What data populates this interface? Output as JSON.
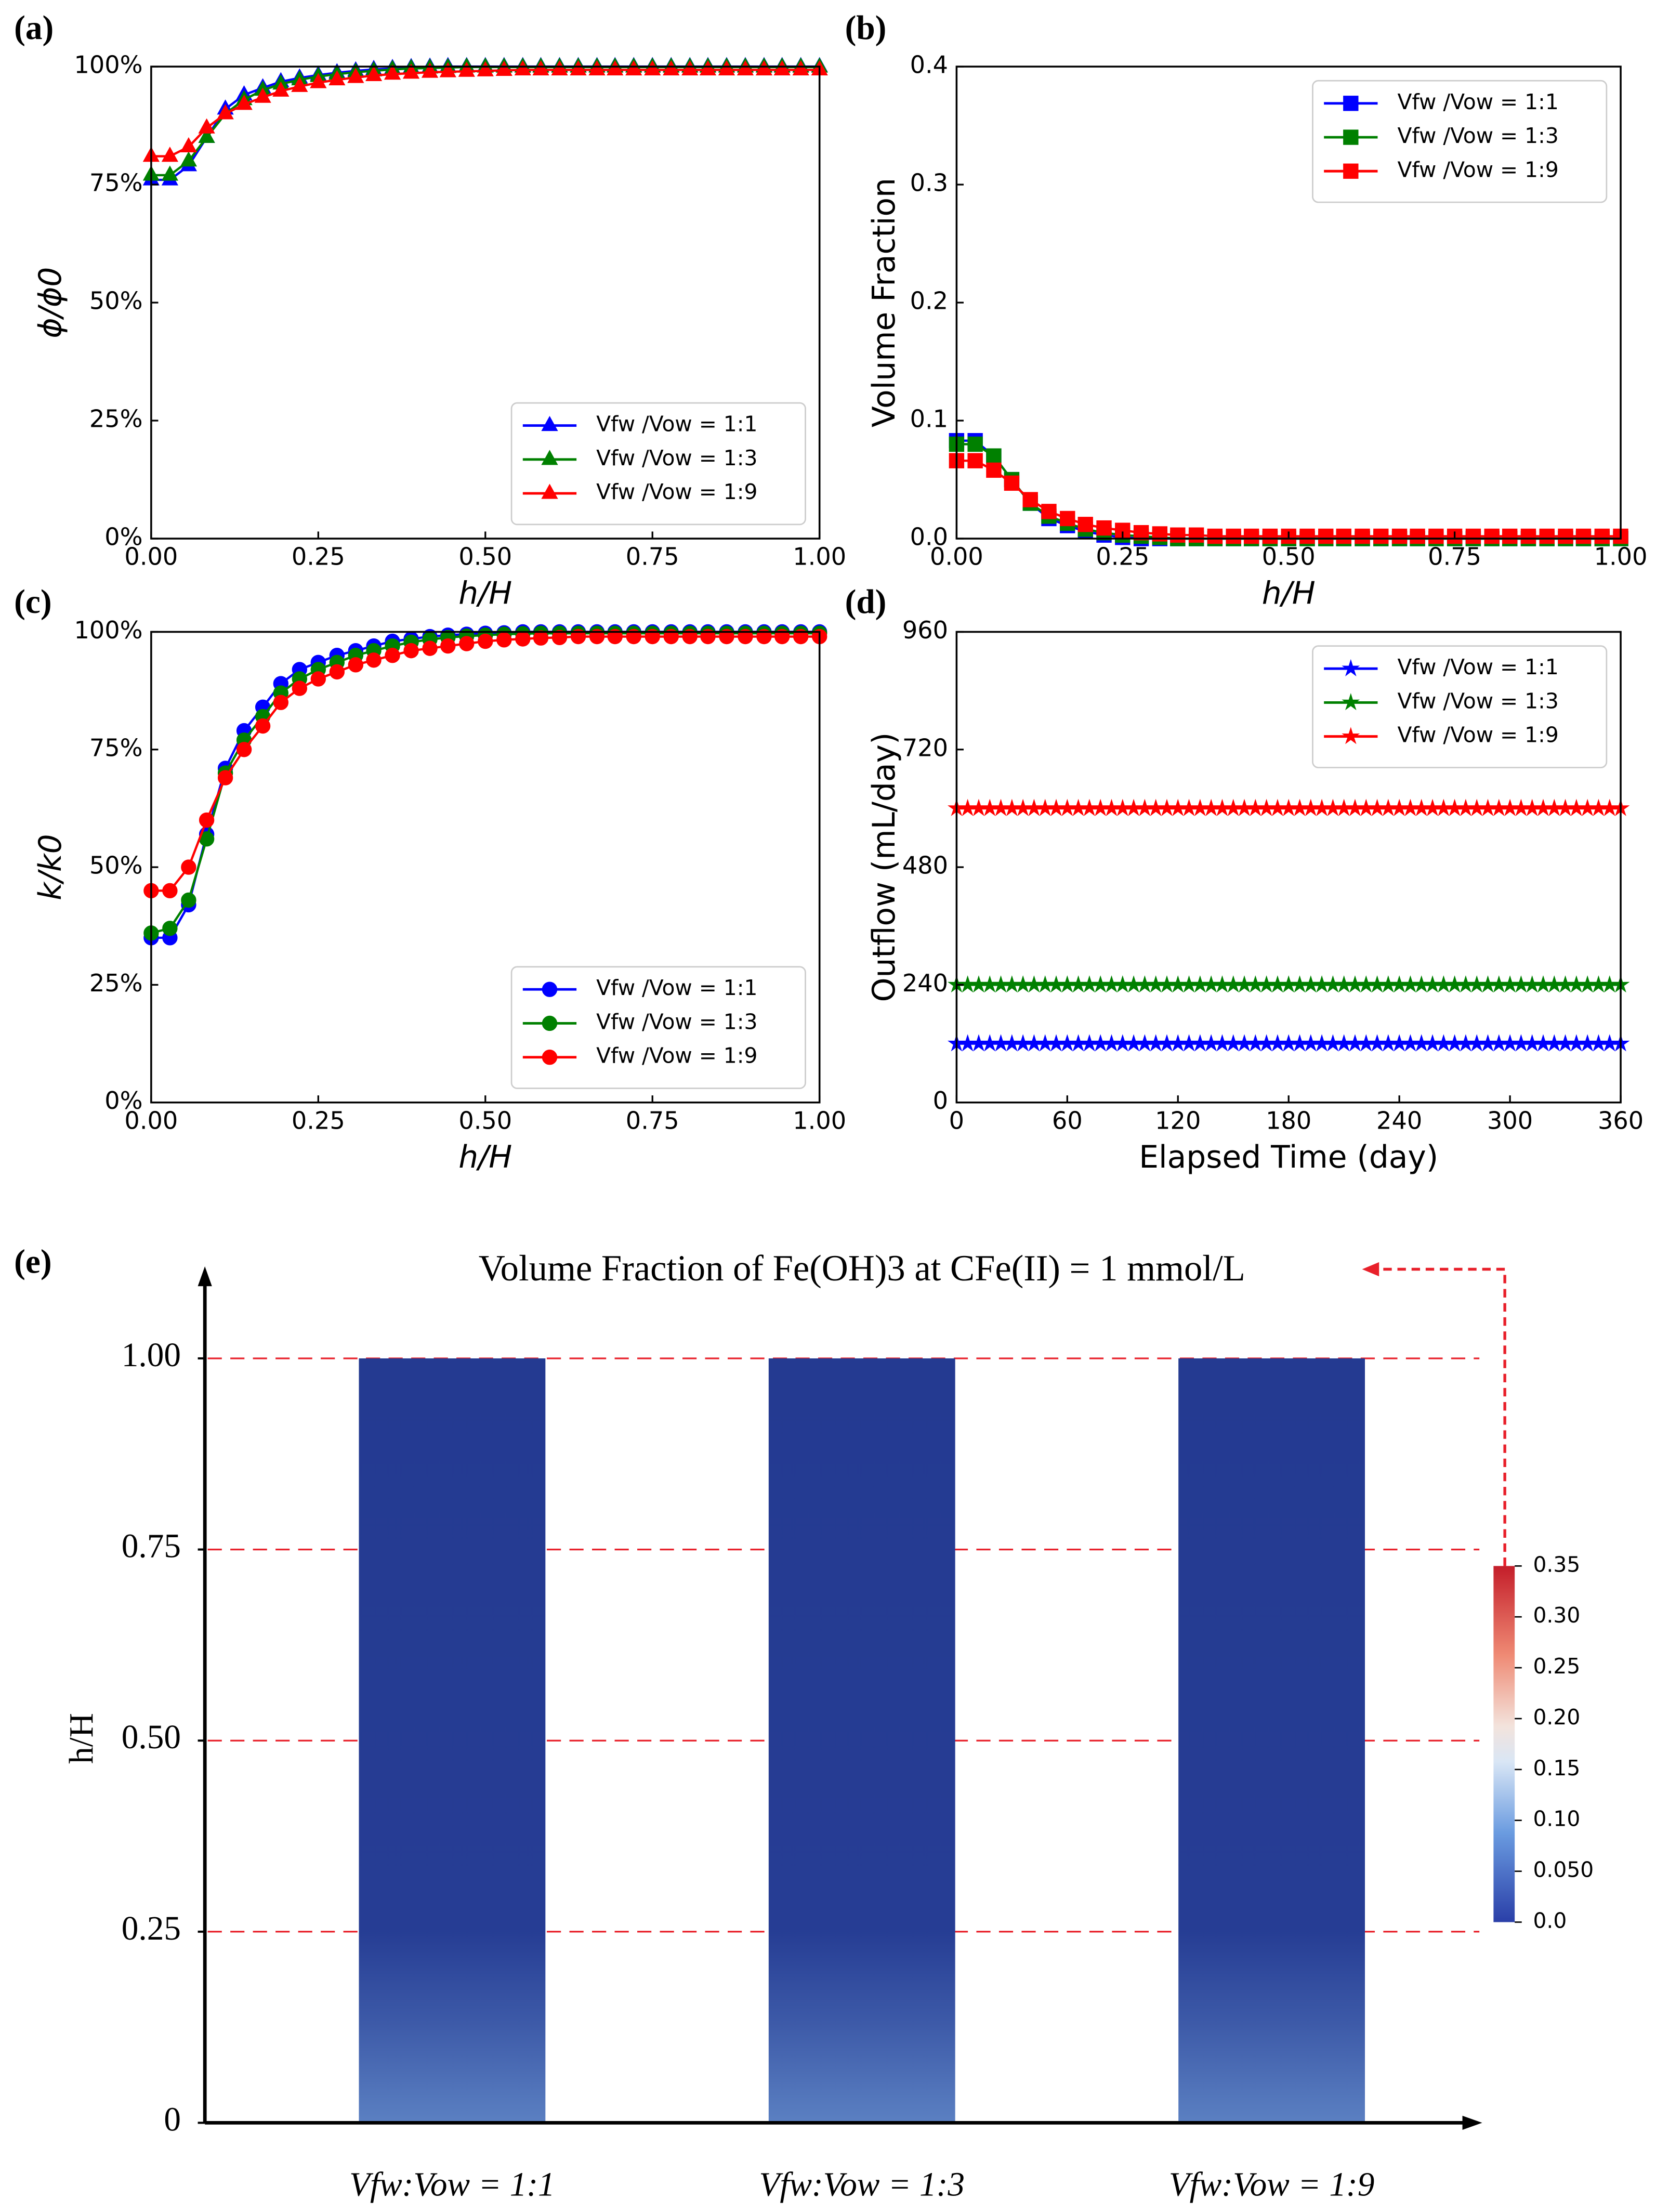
{
  "chart_data": [
    {
      "type": "line",
      "panel": "(a)",
      "marker": "triangle",
      "legend": "lower right",
      "x_label": "h/H",
      "y_label": "ϕ/ϕ0",
      "xlim": [
        0,
        1
      ],
      "ylim": [
        0,
        100
      ],
      "xticks": [
        {
          "value": 0,
          "label": "0.00"
        },
        0.25,
        {
          "value": 0.5,
          "label": "0.50"
        },
        0.75,
        {
          "value": 1,
          "label": "1.00"
        }
      ],
      "yticks": [
        {
          "value": 0,
          "label": "0%"
        },
        {
          "value": 25,
          "label": "25%"
        },
        {
          "value": 50,
          "label": "50%"
        },
        {
          "value": 75,
          "label": "75%"
        },
        {
          "value": 100,
          "label": "100%"
        }
      ],
      "x": [
        0,
        0.028,
        0.056,
        0.083,
        0.111,
        0.139,
        0.167,
        0.194,
        0.222,
        0.25,
        0.278,
        0.306,
        0.333,
        0.361,
        0.389,
        0.417,
        0.444,
        0.472,
        0.5,
        0.528,
        0.556,
        0.583,
        0.611,
        0.639,
        0.667,
        0.694,
        0.722,
        0.75,
        0.778,
        0.806,
        0.833,
        0.861,
        0.889,
        0.917,
        0.944,
        0.972,
        1
      ],
      "series": [
        {
          "name": "Vfw /Vow = 1:1",
          "color": "#0000ff",
          "values": [
            76,
            76,
            79,
            85,
            91,
            94,
            95.5,
            96.8,
            97.6,
            98.2,
            98.7,
            99.1,
            99.4,
            99.6,
            99.8,
            99.9,
            100,
            100,
            100,
            100,
            100,
            100,
            100,
            100,
            100,
            100,
            100,
            100,
            100,
            100,
            100,
            100,
            100,
            100,
            100,
            100,
            100
          ]
        },
        {
          "name": "Vfw /Vow = 1:3",
          "color": "#008000",
          "values": [
            77,
            77,
            80,
            85,
            90,
            93,
            95,
            96.3,
            97.2,
            97.9,
            98.4,
            98.8,
            99.1,
            99.4,
            99.6,
            99.7,
            99.8,
            99.9,
            99.9,
            99.9,
            99.9,
            99.9,
            99.9,
            99.9,
            99.9,
            99.9,
            99.9,
            99.9,
            99.9,
            99.9,
            99.9,
            99.9,
            99.9,
            99.9,
            99.9,
            99.9,
            99.9
          ]
        },
        {
          "name": "Vfw /Vow = 1:9",
          "color": "#ff0000",
          "values": [
            81,
            81,
            83,
            87,
            90,
            92,
            93.5,
            94.8,
            95.8,
            96.6,
            97.2,
            97.7,
            98.1,
            98.4,
            98.6,
            98.8,
            98.9,
            99,
            99.1,
            99.2,
            99.3,
            99.3,
            99.3,
            99.3,
            99.3,
            99.3,
            99.3,
            99.3,
            99.3,
            99.3,
            99.3,
            99.3,
            99.3,
            99.3,
            99.3,
            99.3,
            99.3
          ]
        }
      ]
    },
    {
      "type": "line",
      "panel": "(b)",
      "marker": "square",
      "legend": "upper right",
      "x_label": "h/H",
      "y_label": "Volume Fraction",
      "xlim": [
        0,
        1
      ],
      "ylim": [
        0,
        0.4
      ],
      "xticks": [
        {
          "value": 0,
          "label": "0.00"
        },
        0.25,
        {
          "value": 0.5,
          "label": "0.50"
        },
        0.75,
        {
          "value": 1,
          "label": "1.00"
        }
      ],
      "yticks": [
        {
          "value": 0,
          "label": "0.0"
        },
        0.1,
        0.2,
        0.3,
        0.4
      ],
      "x": [
        0,
        0.028,
        0.056,
        0.083,
        0.111,
        0.139,
        0.167,
        0.194,
        0.222,
        0.25,
        0.278,
        0.306,
        0.333,
        0.361,
        0.389,
        0.417,
        0.444,
        0.472,
        0.5,
        0.528,
        0.556,
        0.583,
        0.611,
        0.639,
        0.667,
        0.694,
        0.722,
        0.75,
        0.778,
        0.806,
        0.833,
        0.861,
        0.889,
        0.917,
        0.944,
        0.972,
        1
      ],
      "series": [
        {
          "name": "Vfw /Vow = 1:1",
          "color": "#0000ff",
          "values": [
            0.083,
            0.083,
            0.07,
            0.05,
            0.03,
            0.017,
            0.011,
            0.006,
            0.003,
            0.001,
            0,
            0,
            0,
            0,
            0,
            0,
            0,
            0,
            0,
            0,
            0,
            0,
            0,
            0,
            0,
            0,
            0,
            0,
            0,
            0,
            0,
            0,
            0,
            0,
            0,
            0,
            0
          ]
        },
        {
          "name": "Vfw /Vow = 1:3",
          "color": "#008000",
          "values": [
            0.08,
            0.08,
            0.07,
            0.05,
            0.03,
            0.019,
            0.013,
            0.008,
            0.005,
            0.003,
            0.002,
            0.001,
            0,
            0,
            0,
            0,
            0,
            0,
            0,
            0,
            0,
            0,
            0,
            0,
            0,
            0,
            0,
            0,
            0,
            0,
            0,
            0,
            0,
            0,
            0,
            0,
            0
          ]
        },
        {
          "name": "Vfw /Vow = 1:9",
          "color": "#ff0000",
          "values": [
            0.066,
            0.066,
            0.058,
            0.047,
            0.033,
            0.023,
            0.017,
            0.012,
            0.009,
            0.007,
            0.005,
            0.004,
            0.003,
            0.003,
            0.002,
            0.002,
            0.002,
            0.002,
            0.002,
            0.002,
            0.002,
            0.002,
            0.002,
            0.002,
            0.002,
            0.002,
            0.002,
            0.002,
            0.002,
            0.002,
            0.002,
            0.002,
            0.002,
            0.002,
            0.002,
            0.002,
            0.002
          ]
        }
      ]
    },
    {
      "type": "line",
      "panel": "(c)",
      "marker": "circle",
      "legend": "lower right",
      "x_label": "h/H",
      "y_label": "k/k0",
      "xlim": [
        0,
        1
      ],
      "ylim": [
        0,
        100
      ],
      "xticks": [
        {
          "value": 0,
          "label": "0.00"
        },
        0.25,
        {
          "value": 0.5,
          "label": "0.50"
        },
        0.75,
        {
          "value": 1,
          "label": "1.00"
        }
      ],
      "yticks": [
        {
          "value": 0,
          "label": "0%"
        },
        {
          "value": 25,
          "label": "25%"
        },
        {
          "value": 50,
          "label": "50%"
        },
        {
          "value": 75,
          "label": "75%"
        },
        {
          "value": 100,
          "label": "100%"
        }
      ],
      "x": [
        0,
        0.028,
        0.056,
        0.083,
        0.111,
        0.139,
        0.167,
        0.194,
        0.222,
        0.25,
        0.278,
        0.306,
        0.333,
        0.361,
        0.389,
        0.417,
        0.444,
        0.472,
        0.5,
        0.528,
        0.556,
        0.583,
        0.611,
        0.639,
        0.667,
        0.694,
        0.722,
        0.75,
        0.778,
        0.806,
        0.833,
        0.861,
        0.889,
        0.917,
        0.944,
        0.972,
        1
      ],
      "series": [
        {
          "name": "Vfw /Vow = 1:1",
          "color": "#0000ff",
          "values": [
            35,
            35,
            42,
            57,
            71,
            79,
            84,
            89,
            92,
            93.5,
            95,
            96,
            97,
            98,
            98.5,
            99,
            99.3,
            99.5,
            99.7,
            99.8,
            100,
            100,
            100,
            100,
            100,
            100,
            100,
            100,
            100,
            100,
            100,
            100,
            100,
            100,
            100,
            100,
            100
          ]
        },
        {
          "name": "Vfw /Vow = 1:3",
          "color": "#008000",
          "values": [
            36,
            37,
            43,
            56,
            70,
            77,
            82,
            87,
            90,
            92,
            93.5,
            95,
            96,
            97,
            97.8,
            98.4,
            98.8,
            99.1,
            99.3,
            99.5,
            99.6,
            99.7,
            99.7,
            99.7,
            99.7,
            99.7,
            99.7,
            99.7,
            99.7,
            99.7,
            99.7,
            99.7,
            99.7,
            99.7,
            99.7,
            99.7,
            99.7
          ]
        },
        {
          "name": "Vfw /Vow = 1:9",
          "color": "#ff0000",
          "values": [
            45,
            45,
            50,
            60,
            69,
            75,
            80,
            85,
            88,
            90,
            91.5,
            93,
            94,
            95,
            96,
            96.5,
            97,
            97.5,
            98,
            98.3,
            98.5,
            98.7,
            98.8,
            99,
            99,
            99,
            99,
            99,
            99,
            99,
            99,
            99,
            99,
            99,
            99,
            99,
            99
          ]
        }
      ]
    },
    {
      "type": "line",
      "panel": "(d)",
      "marker": "star",
      "legend": "upper right",
      "x_label": "Elapsed Time (day)",
      "y_label": "Outflow (mL/day)",
      "xlim": [
        0,
        360
      ],
      "ylim": [
        0,
        960
      ],
      "xticks": [
        0,
        60,
        120,
        180,
        240,
        300,
        360
      ],
      "yticks": [
        0,
        240,
        480,
        720,
        960
      ],
      "x": [
        0,
        6,
        12,
        18,
        24,
        30,
        36,
        42,
        48,
        54,
        60,
        66,
        72,
        78,
        84,
        90,
        96,
        102,
        108,
        114,
        120,
        126,
        132,
        138,
        144,
        150,
        156,
        162,
        168,
        174,
        180,
        186,
        192,
        198,
        204,
        210,
        216,
        222,
        228,
        234,
        240,
        246,
        252,
        258,
        264,
        270,
        276,
        282,
        288,
        294,
        300,
        306,
        312,
        318,
        324,
        330,
        336,
        342,
        348,
        354,
        360
      ],
      "series": [
        {
          "name": "Vfw /Vow = 1:1",
          "color": "#0000ff",
          "values": [
            120,
            120,
            120,
            120,
            120,
            120,
            120,
            120,
            120,
            120,
            120,
            120,
            120,
            120,
            120,
            120,
            120,
            120,
            120,
            120,
            120,
            120,
            120,
            120,
            120,
            120,
            120,
            120,
            120,
            120,
            120,
            120,
            120,
            120,
            120,
            120,
            120,
            120,
            120,
            120,
            120,
            120,
            120,
            120,
            120,
            120,
            120,
            120,
            120,
            120,
            120,
            120,
            120,
            120,
            120,
            120,
            120,
            120,
            120,
            120,
            120
          ]
        },
        {
          "name": "Vfw /Vow = 1:3",
          "color": "#008000",
          "values": [
            240,
            240,
            240,
            240,
            240,
            240,
            240,
            240,
            240,
            240,
            240,
            240,
            240,
            240,
            240,
            240,
            240,
            240,
            240,
            240,
            240,
            240,
            240,
            240,
            240,
            240,
            240,
            240,
            240,
            240,
            240,
            240,
            240,
            240,
            240,
            240,
            240,
            240,
            240,
            240,
            240,
            240,
            240,
            240,
            240,
            240,
            240,
            240,
            240,
            240,
            240,
            240,
            240,
            240,
            240,
            240,
            240,
            240,
            240,
            240,
            240
          ]
        },
        {
          "name": "Vfw /Vow = 1:9",
          "color": "#ff0000",
          "values": [
            600,
            600,
            600,
            600,
            600,
            600,
            600,
            600,
            600,
            600,
            600,
            600,
            600,
            600,
            600,
            600,
            600,
            600,
            600,
            600,
            600,
            600,
            600,
            600,
            600,
            600,
            600,
            600,
            600,
            600,
            600,
            600,
            600,
            600,
            600,
            600,
            600,
            600,
            600,
            600,
            600,
            600,
            600,
            600,
            600,
            600,
            600,
            600,
            600,
            600,
            600,
            600,
            600,
            600,
            600,
            600,
            600,
            600,
            600,
            600,
            600
          ]
        }
      ]
    },
    {
      "type": "bar",
      "panel": "(e)",
      "title": "Volume Fraction of Fe(OH)3 at CFe(II) = 1 mmol/L",
      "y_label": "h/H",
      "color": "#253a91",
      "categories": [
        "Vfw:Vow = 1:1",
        "Vfw:Vow = 1:3",
        "Vfw:Vow = 1:9"
      ],
      "values": [
        1,
        1,
        1
      ],
      "ylim": [
        0,
        1.1
      ],
      "yticks": [
        0,
        0.25,
        {
          "value": 0.5,
          "label": "0.50"
        },
        0.75,
        {
          "value": 1,
          "label": "1.00"
        }
      ],
      "grid": true,
      "colorbar": {
        "lim": [
          0,
          0.35
        ],
        "ticks": [
          {
            "value": 0,
            "label": "0.0"
          },
          {
            "value": 0.05,
            "label": "0.050"
          },
          {
            "value": 0.1,
            "label": "0.10"
          },
          0.15,
          {
            "value": 0.2,
            "label": "0.20"
          },
          0.25,
          {
            "value": 0.3,
            "label": "0.30"
          },
          0.35
        ]
      }
    }
  ]
}
